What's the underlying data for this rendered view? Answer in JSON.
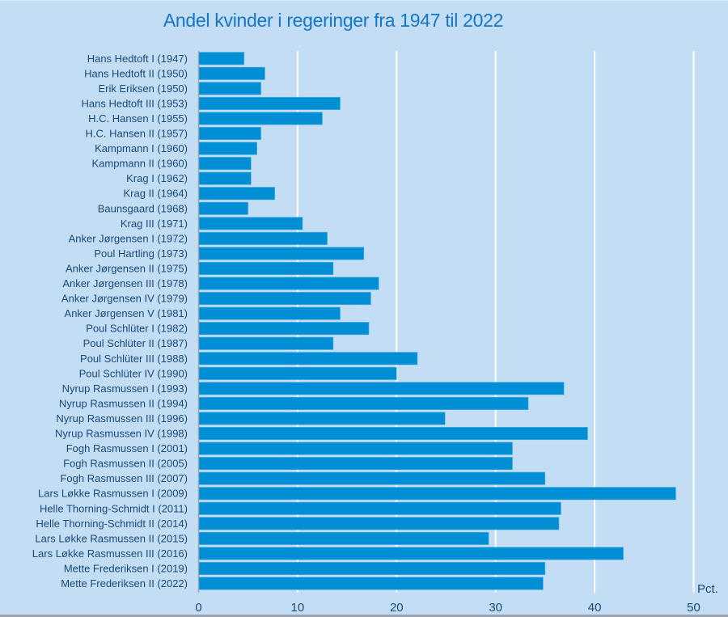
{
  "chart_data": {
    "type": "bar",
    "orientation": "horizontal",
    "title": "Andel kvinder i regeringer fra 1947 til 2022",
    "xlabel": "",
    "ylabel": "",
    "unit_label": "Pct.",
    "xlim": [
      0,
      50
    ],
    "xticks": [
      0,
      10,
      20,
      30,
      40,
      50
    ],
    "grid": true,
    "legend": "none",
    "bar_color": "#008fd5",
    "categories": [
      "Hans Hedtoft I (1947)",
      "Hans Hedtoft II (1950)",
      "Erik Eriksen (1950)",
      "Hans Hedtoft III (1953)",
      "H.C. Hansen I (1955)",
      "H.C. Hansen II (1957)",
      "Kampmann I (1960)",
      "Kampmann II (1960)",
      "Krag I (1962)",
      "Krag II (1964)",
      "Baunsgaard (1968)",
      "Krag III (1971)",
      "Anker Jørgensen I (1972)",
      "Poul Hartling (1973)",
      "Anker Jørgensen II (1975)",
      "Anker Jørgensen III (1978)",
      "Anker Jørgensen IV (1979)",
      "Anker Jørgensen V (1981)",
      "Poul Schlüter I (1982)",
      "Poul Schlüter II (1987)",
      "Poul Schlüter III (1988)",
      "Poul Schlüter IV (1990)",
      "Nyrup Rasmussen I (1993)",
      "Nyrup Rasmussen II (1994)",
      "Nyrup Rasmussen III (1996)",
      "Nyrup Rasmussen IV (1998)",
      "Fogh Rasmussen I (2001)",
      "Fogh Rasmussen II (2005)",
      "Fogh Rasmussen III (2007)",
      "Lars Løkke Rasmussen I (2009)",
      "Helle Thorning-Schmidt I (2011)",
      "Helle Thorning-Schmidt II (2014)",
      "Lars Løkke Rasmussen II (2015)",
      "Lars Løkke Rasmussen III (2016)",
      "Mette Frederiksen I (2019)",
      "Mette Frederiksen II (2022)"
    ],
    "values": [
      4.6,
      6.7,
      6.3,
      14.3,
      12.5,
      6.3,
      5.9,
      5.3,
      5.3,
      7.7,
      5.0,
      10.5,
      13.0,
      16.7,
      13.6,
      18.2,
      17.4,
      14.3,
      17.2,
      13.6,
      22.1,
      20.0,
      36.9,
      33.3,
      24.9,
      39.3,
      31.7,
      31.7,
      35.0,
      48.2,
      36.6,
      36.4,
      29.3,
      42.9,
      35.0,
      34.8
    ]
  }
}
